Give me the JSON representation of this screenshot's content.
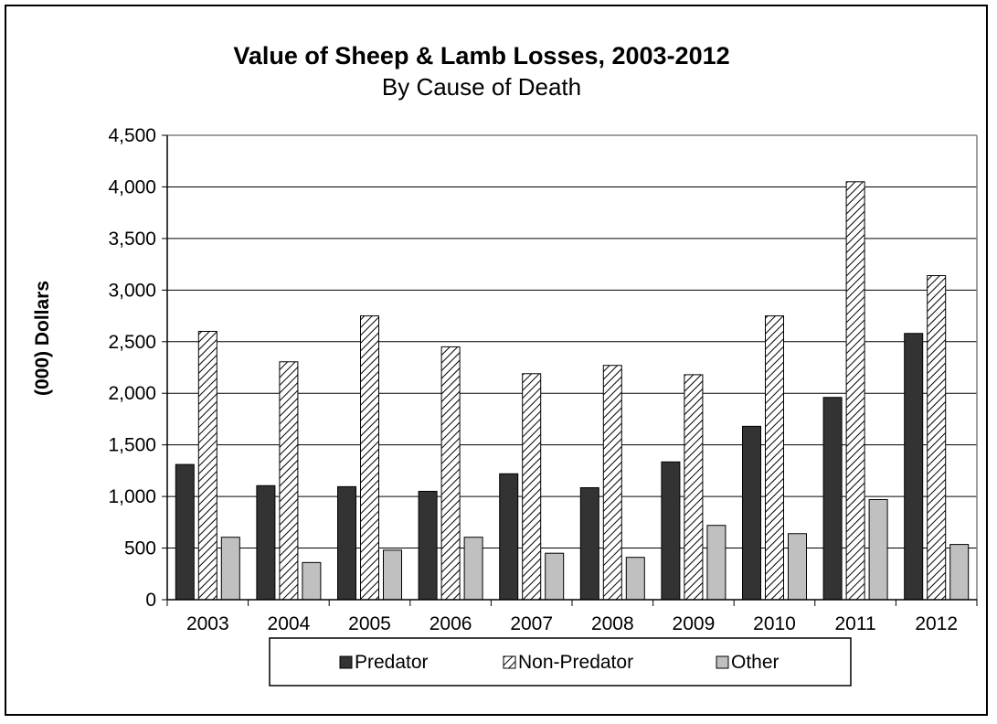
{
  "chart_data": {
    "type": "bar",
    "title": "Value of Sheep & Lamb Losses, 2003-2012",
    "subtitle": "By Cause of Death",
    "xlabel": "",
    "ylabel": "(000) Dollars",
    "ylim": [
      0,
      4500
    ],
    "yticks": [
      0,
      500,
      1000,
      1500,
      2000,
      2500,
      3000,
      3500,
      4000,
      4500
    ],
    "ytick_labels": [
      "0",
      "500",
      "1,000",
      "1,500",
      "2,000",
      "2,500",
      "3,000",
      "3,500",
      "4,000",
      "4,500"
    ],
    "categories": [
      "2003",
      "2004",
      "2005",
      "2006",
      "2007",
      "2008",
      "2009",
      "2010",
      "2011",
      "2012"
    ],
    "series": [
      {
        "name": "Predator",
        "color": "#333333",
        "pattern": "solid",
        "values": [
          1310,
          1105,
          1095,
          1050,
          1220,
          1085,
          1335,
          1680,
          1960,
          2580
        ]
      },
      {
        "name": "Non-Predator",
        "color": "#ffffff",
        "pattern": "diagonal-hatch",
        "values": [
          2600,
          2305,
          2750,
          2450,
          2190,
          2270,
          2180,
          2750,
          4050,
          3140
        ]
      },
      {
        "name": "Other",
        "color": "#c0c0c0",
        "pattern": "solid",
        "values": [
          605,
          360,
          480,
          605,
          450,
          410,
          720,
          640,
          970,
          535
        ]
      }
    ],
    "grid": true,
    "legend_position": "bottom"
  }
}
